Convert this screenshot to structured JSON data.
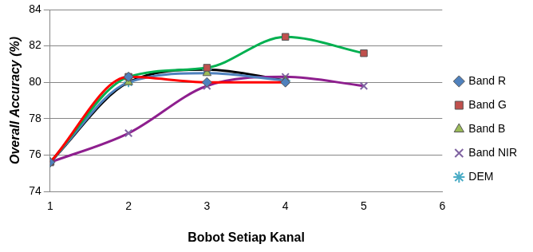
{
  "chart_data": {
    "type": "line",
    "x_label": "Bobot Setiap Kanal",
    "y_label": "Overall Accuracy (%)",
    "x": [
      1,
      2,
      3,
      4,
      5
    ],
    "series": [
      {
        "name": "Band R",
        "color": "#ff0000",
        "marker": "diamond",
        "values": [
          75.6,
          80.3,
          80.0,
          80.0,
          null
        ]
      },
      {
        "name": "Band G",
        "color": "#00b050",
        "marker": "square",
        "values": [
          75.6,
          80.3,
          80.8,
          82.5,
          81.6
        ]
      },
      {
        "name": "Band B",
        "color": "#4f81bd",
        "marker": "triangle",
        "values": [
          75.6,
          80.0,
          80.5,
          80.1,
          null
        ]
      },
      {
        "name": "Band NIR",
        "color": "#8e1f8e",
        "marker": "cross",
        "values": [
          75.6,
          77.2,
          79.8,
          80.3,
          79.8
        ]
      },
      {
        "name": "DEM",
        "color": "#000000",
        "marker": "star",
        "values": [
          75.6,
          80.0,
          80.7,
          80.1,
          null
        ]
      }
    ],
    "xlim": [
      1,
      6
    ],
    "xticks": [
      1,
      2,
      3,
      4,
      5,
      6
    ],
    "ylim": [
      74,
      84
    ],
    "yticks": [
      74,
      76,
      78,
      80,
      82,
      84
    ],
    "grid": true,
    "legend": "right",
    "line_style": "smooth"
  }
}
